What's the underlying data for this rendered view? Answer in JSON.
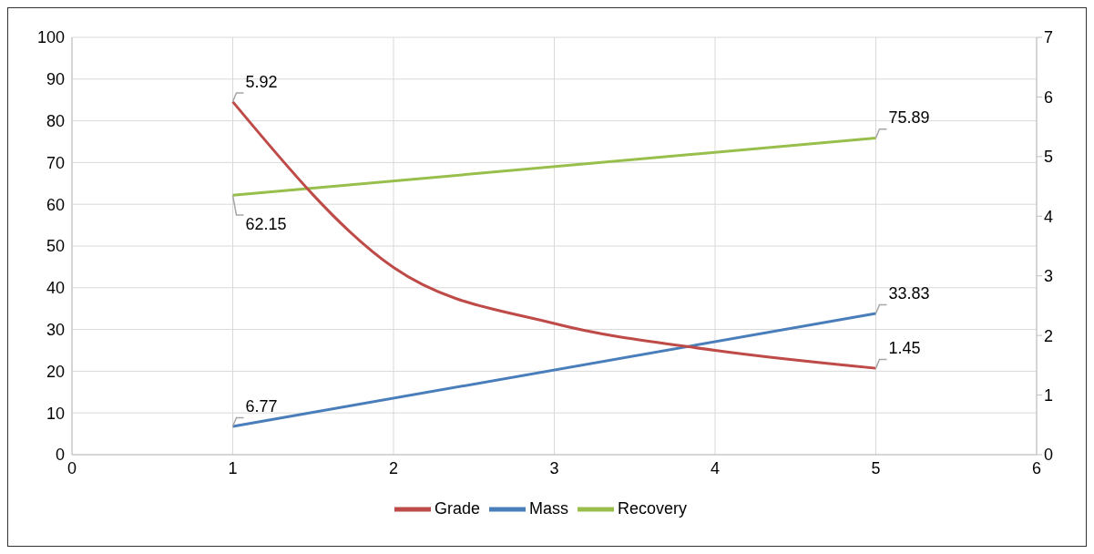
{
  "chart_data": {
    "type": "line",
    "xlim": [
      0,
      6
    ],
    "xticks": [
      0,
      1,
      2,
      3,
      4,
      5,
      6
    ],
    "ylim": [
      0,
      100
    ],
    "yticks": [
      0,
      10,
      20,
      30,
      40,
      50,
      60,
      70,
      80,
      90,
      100
    ],
    "y2lim": [
      0,
      7
    ],
    "y2ticks": [
      0,
      1,
      2,
      3,
      4,
      5,
      6,
      7
    ],
    "grid": true,
    "legend": "bottom",
    "marker": "none",
    "line_style": "solid",
    "series": [
      {
        "name": "Mass",
        "color": "#4a7ebb",
        "x": [
          1,
          5
        ],
        "values": [
          6.77,
          33.83
        ],
        "value_labels": [
          "6.77",
          "33.83"
        ]
      },
      {
        "name": "Recovery",
        "color": "#98bf4c",
        "x": [
          1,
          5
        ],
        "values": [
          62.15,
          75.89
        ],
        "value_labels": [
          "62.15",
          "75.89"
        ]
      },
      {
        "name": "Grade",
        "color": "#be4b48",
        "axis": "y2",
        "x": [
          1,
          2,
          3,
          4,
          5
        ],
        "values": [
          5.92,
          3.14,
          2.2,
          1.75,
          1.45
        ],
        "value_labels": [
          "5.92",
          null,
          null,
          null,
          "1.45"
        ]
      }
    ]
  }
}
